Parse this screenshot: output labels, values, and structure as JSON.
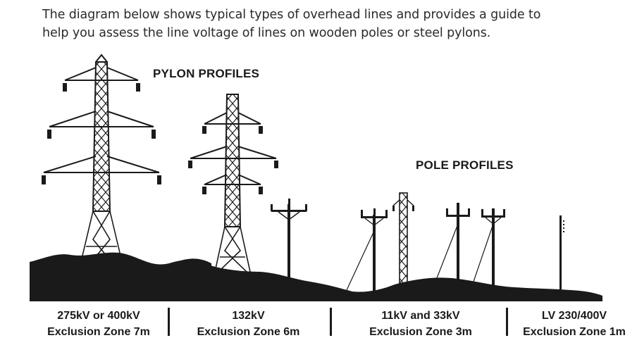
{
  "intro": {
    "line1": "The diagram below shows typical types of overhead lines and provides a guide to",
    "line2": "help you assess the line voltage of lines on wooden poles or steel pylons."
  },
  "headings": {
    "pylon": "PYLON PROFILES",
    "pole": "POLE PROFILES"
  },
  "categories": [
    {
      "voltage": "275kV or 400kV",
      "zone": "Exclusion Zone 7m"
    },
    {
      "voltage": "132kV",
      "zone": "Exclusion Zone 6m"
    },
    {
      "voltage": "11kV and 33kV",
      "zone": "Exclusion Zone 3m"
    },
    {
      "voltage": "LV 230/400V",
      "zone": "Exclusion Zone 1m"
    }
  ]
}
